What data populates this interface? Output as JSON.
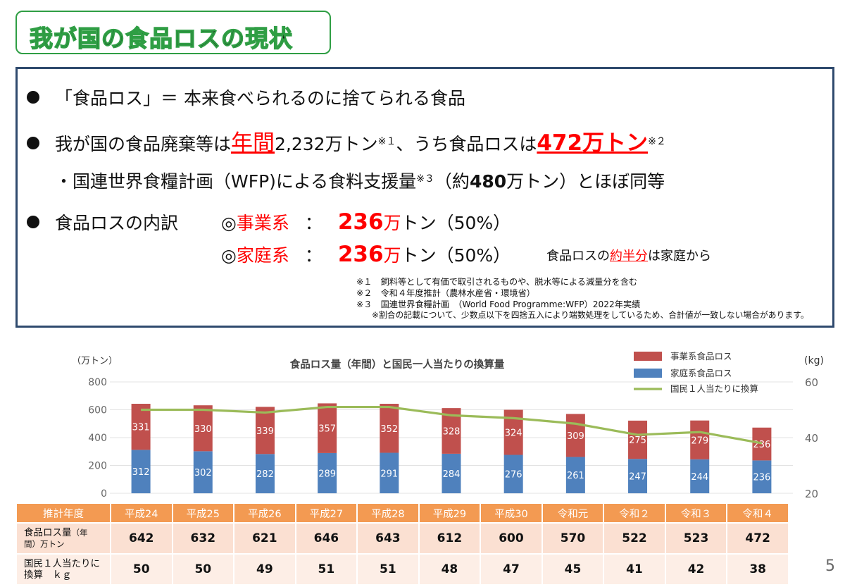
{
  "page_title": "我が国の食品ロスの現状",
  "bullets": {
    "b1": "「食品ロス」＝ 本来食べられるのに捨てられる食品",
    "b2_pre": "我が国の食品廃棄等は",
    "b2_nenkan": "年間",
    "b2_amount": "2,232万トン",
    "b2_sup1": "※１",
    "b2_mid": "、うち食品ロスは",
    "b2_loss_num": "472",
    "b2_loss_unit": "万トン",
    "b2_sup2": "※２",
    "b3_pre": "・国連世界食糧計画（WFP)による食料支援量",
    "b3_sup3": "※３",
    "b3_open": "（約",
    "b3_num": "480",
    "b3_close": "万トン）とほぼ同等",
    "b4_label": "食品ロスの内訳",
    "b4_biz_mark": "◎",
    "b4_biz": "事業系",
    "b4_colon": "：",
    "b4_biz_num": "236",
    "b4_biz_unit": "万",
    "b4_biz_rest": "トン（50%）",
    "b5_home_mark": "◎",
    "b5_home": "家庭系",
    "b5_colon": "：",
    "b5_home_num": "236",
    "b5_home_unit": "万",
    "b5_home_rest": "トン（50%）",
    "b5_note_pre": "食品ロスの",
    "b5_note_red": "約半分",
    "b5_note_post": "は家庭から"
  },
  "notes": [
    "※１　飼料等として有価で取引されるものや、脱水等による減量分を含む",
    "※２　令和４年度推計（農林水産省・環境省）",
    "※３　国連世界食糧計画　（World Food Programme:WFP）2022年実績",
    "※割合の記載について、少数点以下を四捨五入により端数処理をしているため、合計値が一致しない場合があります。"
  ],
  "table": {
    "header_label": "推計年度",
    "row1_label": "食品ロス量（年間）万トン",
    "row1_label_a": "食品ロス量",
    "row1_label_b": "（年",
    "row1_label_c": "間）万トン",
    "row2_label_a": "国民１人当たりに",
    "row2_label_b": "換算　ｋｇ",
    "years": [
      "平成24",
      "平成25",
      "平成26",
      "平成27",
      "平成28",
      "平成29",
      "平成30",
      "令和元",
      "令和２",
      "令和３",
      "令和４"
    ],
    "totals": [
      "642",
      "632",
      "621",
      "646",
      "643",
      "612",
      "600",
      "570",
      "522",
      "523",
      "472"
    ],
    "per_capita": [
      "50",
      "50",
      "49",
      "51",
      "51",
      "48",
      "47",
      "45",
      "41",
      "42",
      "38"
    ]
  },
  "page_number": "5",
  "colors": {
    "business": "#c0504d",
    "household": "#4f81bd",
    "per_capita_line": "#9bbb59",
    "title_green": "#2f9e44",
    "box_navy": "#2f4a6e",
    "table_header": "#f39a52"
  },
  "chart_data": {
    "type": "bar",
    "stacked": true,
    "title": "食品ロス量（年間）と国民一人当たりの換算量",
    "ylabel": "（万トン）",
    "y2label": "(kg)",
    "ylim": [
      0,
      800
    ],
    "yticks": [
      "0",
      "200",
      "400",
      "600",
      "800"
    ],
    "y2lim": [
      20,
      60
    ],
    "y2ticks": [
      "20",
      "40",
      "60"
    ],
    "categories": [
      "平成24",
      "平成25",
      "平成26",
      "平成27",
      "平成28",
      "平成29",
      "平成30",
      "令和元",
      "令和２",
      "令和３",
      "令和４"
    ],
    "series": [
      {
        "name": "家庭系食品ロス",
        "values": [
          312,
          302,
          282,
          289,
          291,
          284,
          276,
          261,
          247,
          244,
          236
        ]
      },
      {
        "name": "事業系食品ロス",
        "values": [
          331,
          330,
          339,
          357,
          352,
          328,
          324,
          309,
          275,
          279,
          236
        ]
      }
    ],
    "line_series": {
      "name": "国民１人当たりに換算",
      "axis": "right",
      "values": [
        50,
        50,
        49,
        51,
        51,
        48,
        47,
        45,
        41,
        42,
        38
      ]
    },
    "legend": [
      "事業系食品ロス",
      "家庭系食品ロス",
      "国民１人当たりに換算"
    ],
    "legend_position": "top-right",
    "grid": true
  }
}
